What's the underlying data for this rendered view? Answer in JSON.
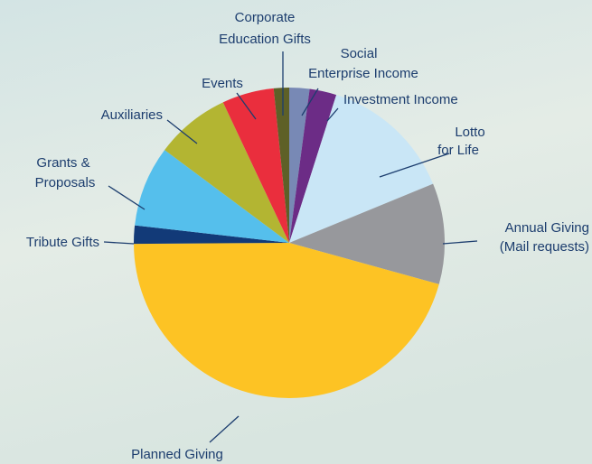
{
  "chart_data": {
    "type": "pie",
    "categories": [
      [
        "Social",
        "Enterprise Income"
      ],
      [
        "Investment Income"
      ],
      [
        "Lotto",
        "for Life"
      ],
      [
        "Annual Giving",
        "(Mail requests)"
      ],
      [
        "Planned Giving"
      ],
      [
        "Tribute Gifts"
      ],
      [
        "Grants &",
        "Proposals"
      ],
      [
        "Auxiliaries"
      ],
      [
        "Events"
      ],
      [
        "Corporate",
        "Education Gifts"
      ]
    ],
    "values": [
      2.1,
      2.8,
      13.9,
      10.5,
      45.6,
      1.9,
      8.4,
      7.8,
      5.4,
      1.6
    ],
    "colors": [
      "#7889b5",
      "#6c2c86",
      "#c9e6f6",
      "#97989c",
      "#fdc324",
      "#123a78",
      "#55bfec",
      "#b3b532",
      "#ea2e3d",
      "#5e6027"
    ]
  }
}
